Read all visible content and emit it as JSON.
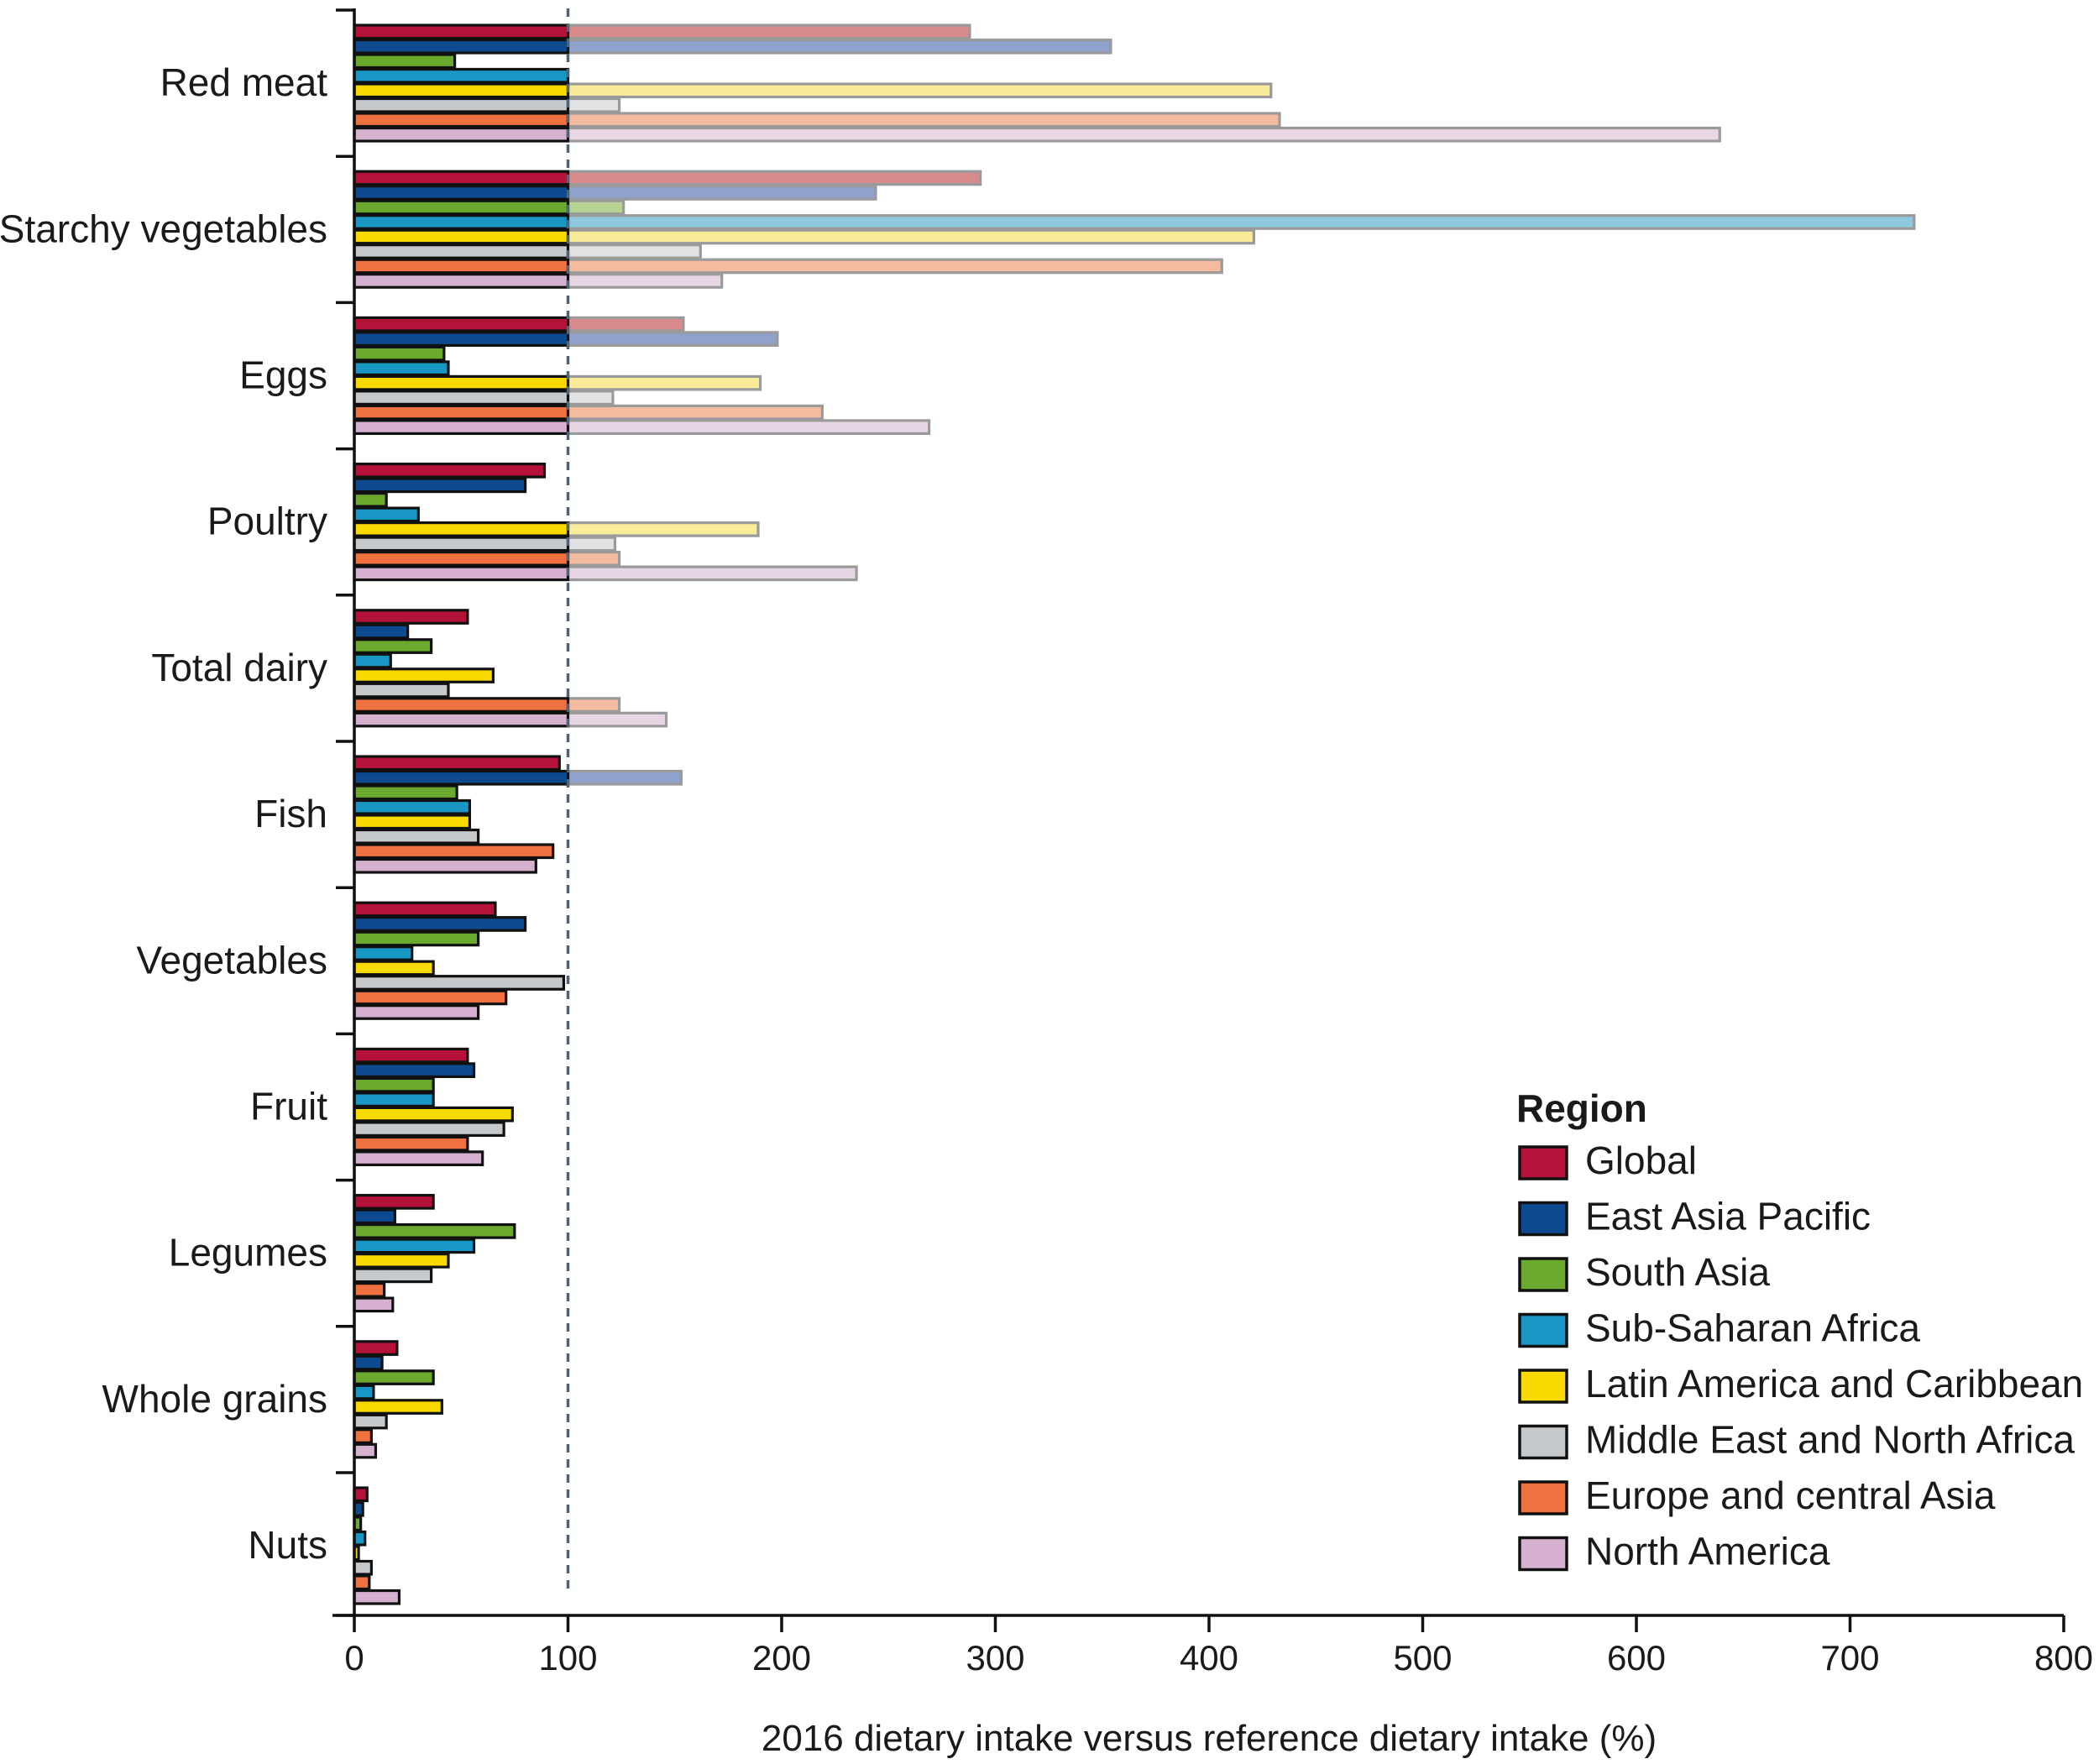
{
  "chart_data": {
    "type": "bar",
    "orientation": "horizontal",
    "title": "",
    "xlabel": "2016 dietary intake versus reference dietary intake (%)",
    "ylabel": "",
    "xlim": [
      0,
      800
    ],
    "xticks": [
      "0",
      "100",
      "200",
      "300",
      "400",
      "500",
      "600",
      "700",
      "800"
    ],
    "reference_line": 100,
    "legend_placement": "bottom-right",
    "grid": false,
    "legend_title": "Region",
    "categories": [
      "Red meat",
      "Starchy vegetables",
      "Eggs",
      "Poultry",
      "Total dairy",
      "Fish",
      "Vegetables",
      "Fruit",
      "Legumes",
      "Whole grains",
      "Nuts"
    ],
    "series": [
      {
        "name": "Global",
        "color": "#b5123a",
        "light_color": "#d98a8c",
        "values": [
          288,
          293,
          154,
          89,
          53,
          96,
          66,
          53,
          37,
          20,
          6
        ]
      },
      {
        "name": "East Asia Pacific",
        "color": "#0d4a8f",
        "light_color": "#8ea2cc",
        "values": [
          354,
          244,
          198,
          80,
          25,
          153,
          80,
          56,
          19,
          13,
          4
        ]
      },
      {
        "name": "South Asia",
        "color": "#6aa82e",
        "light_color": "#b6d394",
        "values": [
          47,
          126,
          42,
          15,
          36,
          48,
          58,
          37,
          75,
          37,
          3
        ]
      },
      {
        "name": "Sub-Saharan Africa",
        "color": "#1897c4",
        "light_color": "#8fc9e0",
        "values": [
          100,
          730,
          44,
          30,
          17,
          54,
          27,
          37,
          56,
          9,
          5
        ]
      },
      {
        "name": "Latin America and Caribbean",
        "color": "#f8da00",
        "light_color": "#f9eb9a",
        "values": [
          429,
          421,
          190,
          189,
          65,
          54,
          37,
          74,
          44,
          41,
          2
        ]
      },
      {
        "name": "Middle East and North Africa",
        "color": "#c6c9cc",
        "light_color": "#e1e2e4",
        "values": [
          124,
          162,
          121,
          122,
          44,
          58,
          98,
          70,
          36,
          15,
          8
        ]
      },
      {
        "name": "Europe and central  Asia",
        "color": "#ef7140",
        "light_color": "#f5bb9f",
        "values": [
          433,
          406,
          219,
          124,
          124,
          93,
          71,
          53,
          14,
          8,
          7
        ]
      },
      {
        "name": "North America",
        "color": "#d6b0cf",
        "light_color": "#e9d6e4",
        "values": [
          639,
          172,
          269,
          235,
          146,
          85,
          58,
          60,
          18,
          10,
          21
        ]
      }
    ]
  }
}
